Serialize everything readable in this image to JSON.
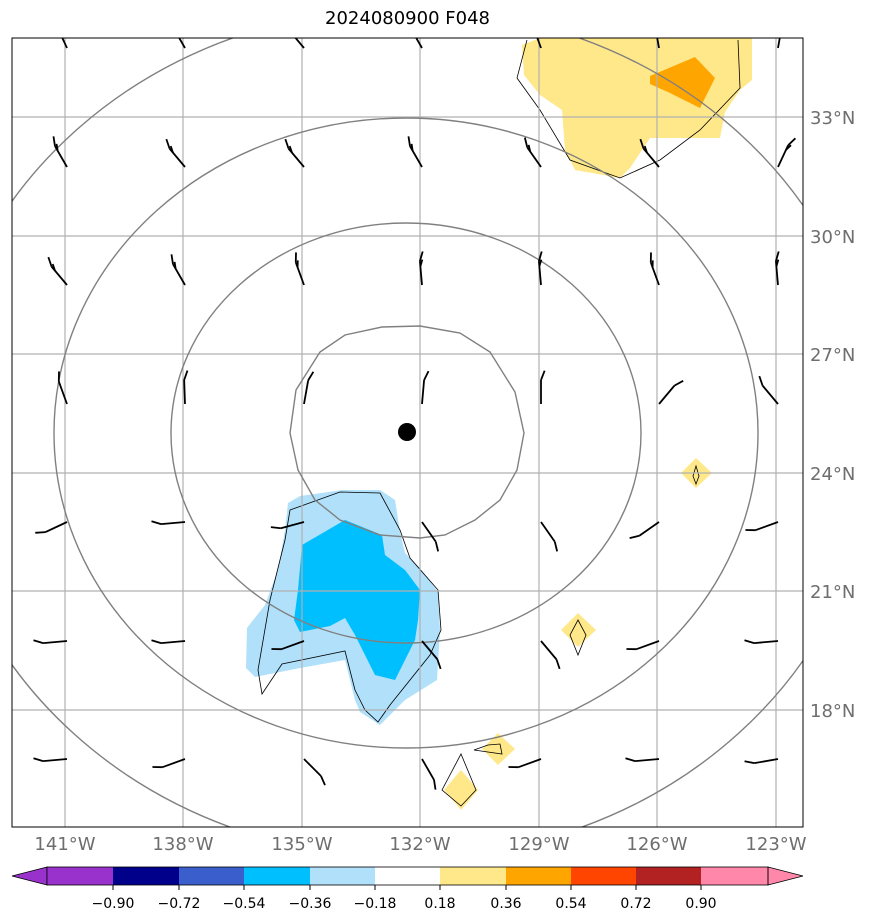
{
  "title": "2024080900 F048",
  "map": {
    "lon_range": [
      -142.3,
      -122.3
    ],
    "lat_range": [
      15.0,
      35.0
    ],
    "lon_labels": [
      "141°W",
      "138°W",
      "135°W",
      "132°W",
      "129°W",
      "126°W",
      "123°W"
    ],
    "lat_labels": [
      "33°N",
      "30°N",
      "27°N",
      "24°N",
      "21°N",
      "18°N"
    ],
    "center_marker": {
      "lon": -132.4,
      "lat": 25.0
    },
    "grid": true,
    "contour_style": "gray concentric rings around center",
    "colors": {
      "light_blue": "#b0e0fa",
      "blue": "#00bfff",
      "light_yellow": "#ffe88a",
      "orange": "#ffa500"
    }
  },
  "colorbar": {
    "ticks": [
      "−0.90",
      "−0.72",
      "−0.54",
      "−0.36",
      "−0.18",
      "0.18",
      "0.36",
      "0.54",
      "0.72",
      "0.90"
    ],
    "colors": [
      "#9932cc",
      "#00008b",
      "#3a5fcd",
      "#00bfff",
      "#b0e0fa",
      "#ffffff",
      "#ffe88a",
      "#ffa500",
      "#ff4500",
      "#b22222",
      "#ff88aa"
    ],
    "extend": "both"
  }
}
